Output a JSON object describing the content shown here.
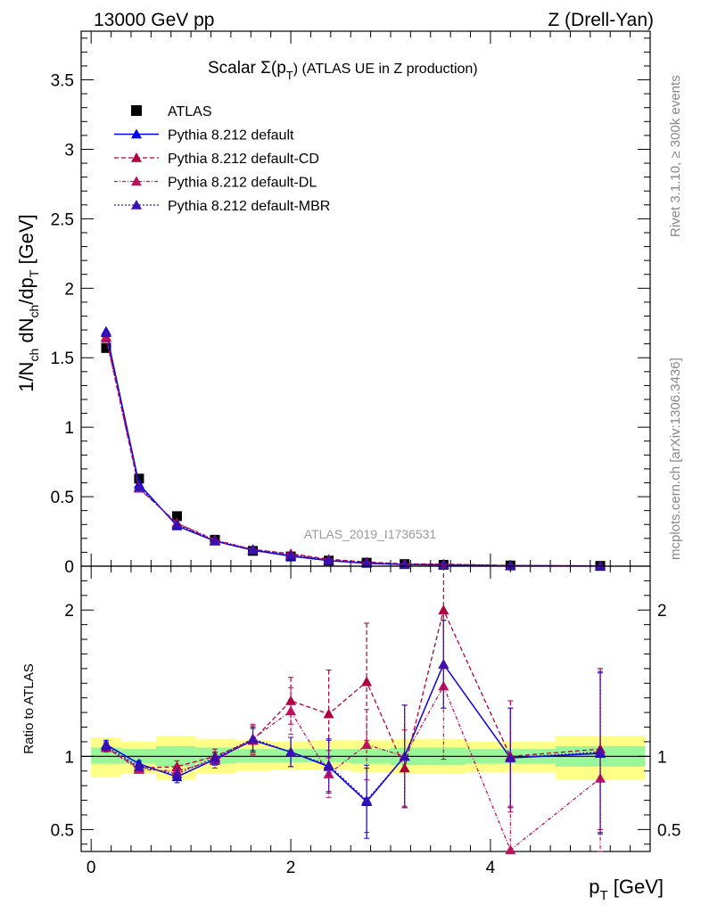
{
  "header": {
    "left": "13000 GeV pp",
    "right": "Z (Drell-Yan)"
  },
  "side_text": {
    "top": "Rivet 3.1.10, ≥ 300k events",
    "bottom": "mcplots.cern.ch [arXiv:1306.3436]"
  },
  "watermark": "ATLAS_2019_I1736531",
  "chart_data": [
    {
      "type": "scatter",
      "panel": "main",
      "title": "Scalar Σ(p_T) (ATLAS UE in Z production)",
      "title_main": "Scalar Σ(p",
      "title_sub": "T",
      "title_end": ")  (ATLAS UE in Z production)",
      "ylabel": "1/N_ch dN_ch/dp_T [GeV]",
      "xlabel": "p_T [GeV]",
      "xlim": [
        -0.1,
        5.6
      ],
      "ylim": [
        0,
        3.85
      ],
      "yticks": [
        "0",
        "0.5",
        "1",
        "1.5",
        "2",
        "2.5",
        "3",
        "3.5"
      ],
      "xticks": [
        "0",
        "2",
        "4"
      ],
      "x": [
        0.15,
        0.48,
        0.86,
        1.24,
        1.62,
        2.0,
        2.38,
        2.76,
        3.14,
        3.53,
        4.2,
        5.1
      ],
      "legend": [
        "ATLAS",
        "Pythia 8.212 default",
        "Pythia 8.212 default-CD",
        "Pythia 8.212 default-DL",
        "Pythia 8.212 default-MBR"
      ],
      "series": [
        {
          "name": "ATLAS",
          "color": "#000000",
          "values": [
            1.57,
            0.63,
            0.36,
            0.19,
            0.11,
            0.07,
            0.04,
            0.025,
            0.015,
            0.01,
            0.005,
            0.002
          ]
        },
        {
          "name": "Pythia 8.212 default",
          "color": "#0000ee",
          "values": [
            1.69,
            0.59,
            0.29,
            0.18,
            0.115,
            0.072,
            0.04,
            0.02,
            0.012,
            0.009,
            0.004,
            0.002
          ]
        },
        {
          "name": "Pythia 8.212 default-CD",
          "color": "#b0003c",
          "values": [
            1.65,
            0.56,
            0.31,
            0.18,
            0.12,
            0.09,
            0.05,
            0.03,
            0.017,
            0.015,
            0.005,
            0.002
          ]
        },
        {
          "name": "Pythia 8.212 default-DL",
          "color": "#c01060",
          "values": [
            1.64,
            0.56,
            0.31,
            0.19,
            0.12,
            0.085,
            0.045,
            0.025,
            0.014,
            0.013,
            0.003,
            0.002
          ]
        },
        {
          "name": "Pythia 8.212 default-MBR",
          "color": "#3a10b0",
          "values": [
            1.68,
            0.57,
            0.3,
            0.185,
            0.12,
            0.08,
            0.045,
            0.025,
            0.014,
            0.012,
            0.004,
            0.002
          ]
        }
      ]
    },
    {
      "type": "scatter",
      "panel": "ratio",
      "ylabel": "Ratio to ATLAS",
      "ylim": [
        0.35,
        2.3
      ],
      "yticks": [
        "0.5",
        "1",
        "2"
      ],
      "x": [
        0.15,
        0.48,
        0.86,
        1.24,
        1.62,
        2.0,
        2.38,
        2.76,
        3.14,
        3.53,
        4.2,
        5.1
      ],
      "bands": {
        "edges": [
          0.0,
          0.3,
          0.65,
          1.05,
          1.45,
          1.8,
          2.2,
          2.6,
          3.0,
          3.35,
          3.75,
          4.65,
          5.55
        ],
        "green_lo": [
          0.95,
          0.95,
          0.93,
          0.95,
          0.96,
          0.96,
          0.96,
          0.95,
          0.94,
          0.94,
          0.95,
          0.93
        ],
        "green_hi": [
          1.06,
          1.05,
          1.07,
          1.06,
          1.05,
          1.05,
          1.05,
          1.05,
          1.06,
          1.06,
          1.05,
          1.07
        ],
        "yellow_lo": [
          0.86,
          0.88,
          0.84,
          0.88,
          0.9,
          0.91,
          0.91,
          0.89,
          0.88,
          0.88,
          0.89,
          0.84
        ],
        "yellow_hi": [
          1.13,
          1.1,
          1.14,
          1.12,
          1.11,
          1.1,
          1.11,
          1.11,
          1.12,
          1.12,
          1.1,
          1.14
        ]
      },
      "series": [
        {
          "name": "Pythia 8.212 default",
          "values": [
            1.08,
            0.95,
            0.86,
            0.98,
            1.11,
            1.03,
            0.93,
            0.69,
            1.0,
            1.63,
            0.99,
            1.02
          ],
          "err": [
            0.03,
            0.02,
            0.04,
            0.04,
            0.08,
            0.1,
            0.18,
            0.25,
            0.35,
            0.3,
            0.34,
            0.55
          ]
        },
        {
          "name": "Pythia 8.212 default-CD",
          "values": [
            1.06,
            0.92,
            0.93,
            1.0,
            1.11,
            1.38,
            1.29,
            1.51,
            0.92,
            2.0,
            1.0,
            1.05
          ],
          "err": [
            0.03,
            0.02,
            0.04,
            0.05,
            0.1,
            0.16,
            0.3,
            0.4,
            0.26,
            0.4,
            0.38,
            0.55
          ]
        },
        {
          "name": "Pythia 8.212 default-DL",
          "values": [
            1.06,
            0.91,
            0.9,
            0.97,
            1.12,
            1.31,
            0.88,
            1.08,
            1.0,
            1.48,
            0.36,
            0.85
          ],
          "err": [
            0.03,
            0.02,
            0.04,
            0.05,
            0.1,
            0.16,
            0.16,
            0.24,
            0.35,
            0.5,
            0.3,
            0.75
          ]
        },
        {
          "name": "Pythia 8.212 default-MBR",
          "values": [
            1.07,
            0.93,
            0.88,
            0.99,
            1.12,
            1.03,
            0.94,
            0.7,
            1.0,
            1.63,
            0.99,
            1.03
          ],
          "err": [
            0.03,
            0.02,
            0.04,
            0.04,
            0.08,
            0.1,
            0.18,
            0.22,
            0.35,
            0.3,
            0.34,
            0.55
          ]
        }
      ]
    }
  ]
}
